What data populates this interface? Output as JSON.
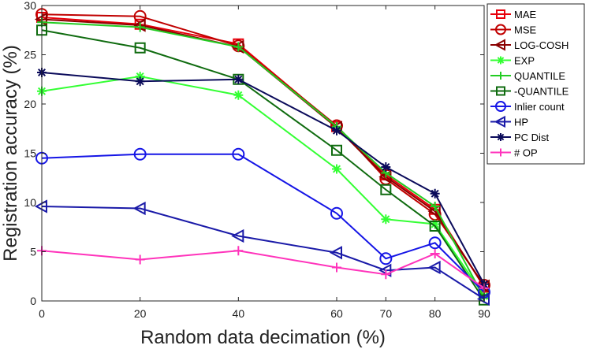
{
  "chart_data": {
    "type": "line",
    "title": "",
    "xlabel": "Random data decimation (%)",
    "ylabel": "Registration accuracy (%)",
    "xlim": [
      0,
      90
    ],
    "ylim": [
      0,
      30
    ],
    "xticks": [
      0,
      20,
      40,
      60,
      70,
      80,
      90
    ],
    "xtick_labels": [
      "0",
      "20",
      "40",
      "60",
      "70",
      "80",
      "90"
    ],
    "yticks": [
      0,
      5,
      10,
      15,
      20,
      25,
      30
    ],
    "ytick_labels": [
      "0",
      "5",
      "10",
      "15",
      "20",
      "25",
      "30"
    ],
    "x": [
      0,
      20,
      40,
      60,
      70,
      80,
      90
    ],
    "legend_position": "top-right",
    "series": [
      {
        "name": "MAE",
        "color": "#e8000b",
        "marker": "square",
        "values": [
          28.8,
          28.1,
          26.1,
          17.7,
          12.8,
          9.3,
          1.4
        ]
      },
      {
        "name": "MSE",
        "color": "#c00000",
        "marker": "circle",
        "values": [
          29.1,
          28.9,
          25.9,
          17.8,
          12.4,
          8.8,
          1.6
        ]
      },
      {
        "name": "LOG-COSH",
        "color": "#8b0000",
        "marker": "triangle-left",
        "values": [
          28.6,
          28.0,
          25.8,
          17.6,
          12.6,
          9.1,
          1.5
        ]
      },
      {
        "name": "EXP",
        "color": "#33ff33",
        "marker": "asterisk",
        "values": [
          21.3,
          22.8,
          20.9,
          13.4,
          8.3,
          7.8,
          0.5
        ]
      },
      {
        "name": "QUANTILE",
        "color": "#22cc22",
        "marker": "plus",
        "values": [
          28.3,
          27.8,
          25.8,
          17.7,
          13.0,
          9.6,
          0.3
        ]
      },
      {
        "name": "-QUANTILE",
        "color": "#0f6b0f",
        "marker": "square",
        "values": [
          27.5,
          25.7,
          22.5,
          15.3,
          11.3,
          7.6,
          0.1
        ]
      },
      {
        "name": "Inlier count",
        "color": "#1515e6",
        "marker": "circle",
        "values": [
          14.5,
          14.9,
          14.9,
          8.9,
          4.3,
          5.9,
          0.9
        ]
      },
      {
        "name": "HP",
        "color": "#1a1aa8",
        "marker": "triangle-left",
        "values": [
          9.6,
          9.4,
          6.6,
          4.9,
          3.1,
          3.4,
          0.2
        ]
      },
      {
        "name": "PC Dist",
        "color": "#0a0a5a",
        "marker": "asterisk",
        "values": [
          23.2,
          22.3,
          22.5,
          17.3,
          13.6,
          10.9,
          1.7
        ]
      },
      {
        "name": "# OP",
        "color": "#ff33bb",
        "marker": "plus",
        "values": [
          5.1,
          4.2,
          5.1,
          3.4,
          2.7,
          4.8,
          1.3
        ]
      }
    ]
  }
}
